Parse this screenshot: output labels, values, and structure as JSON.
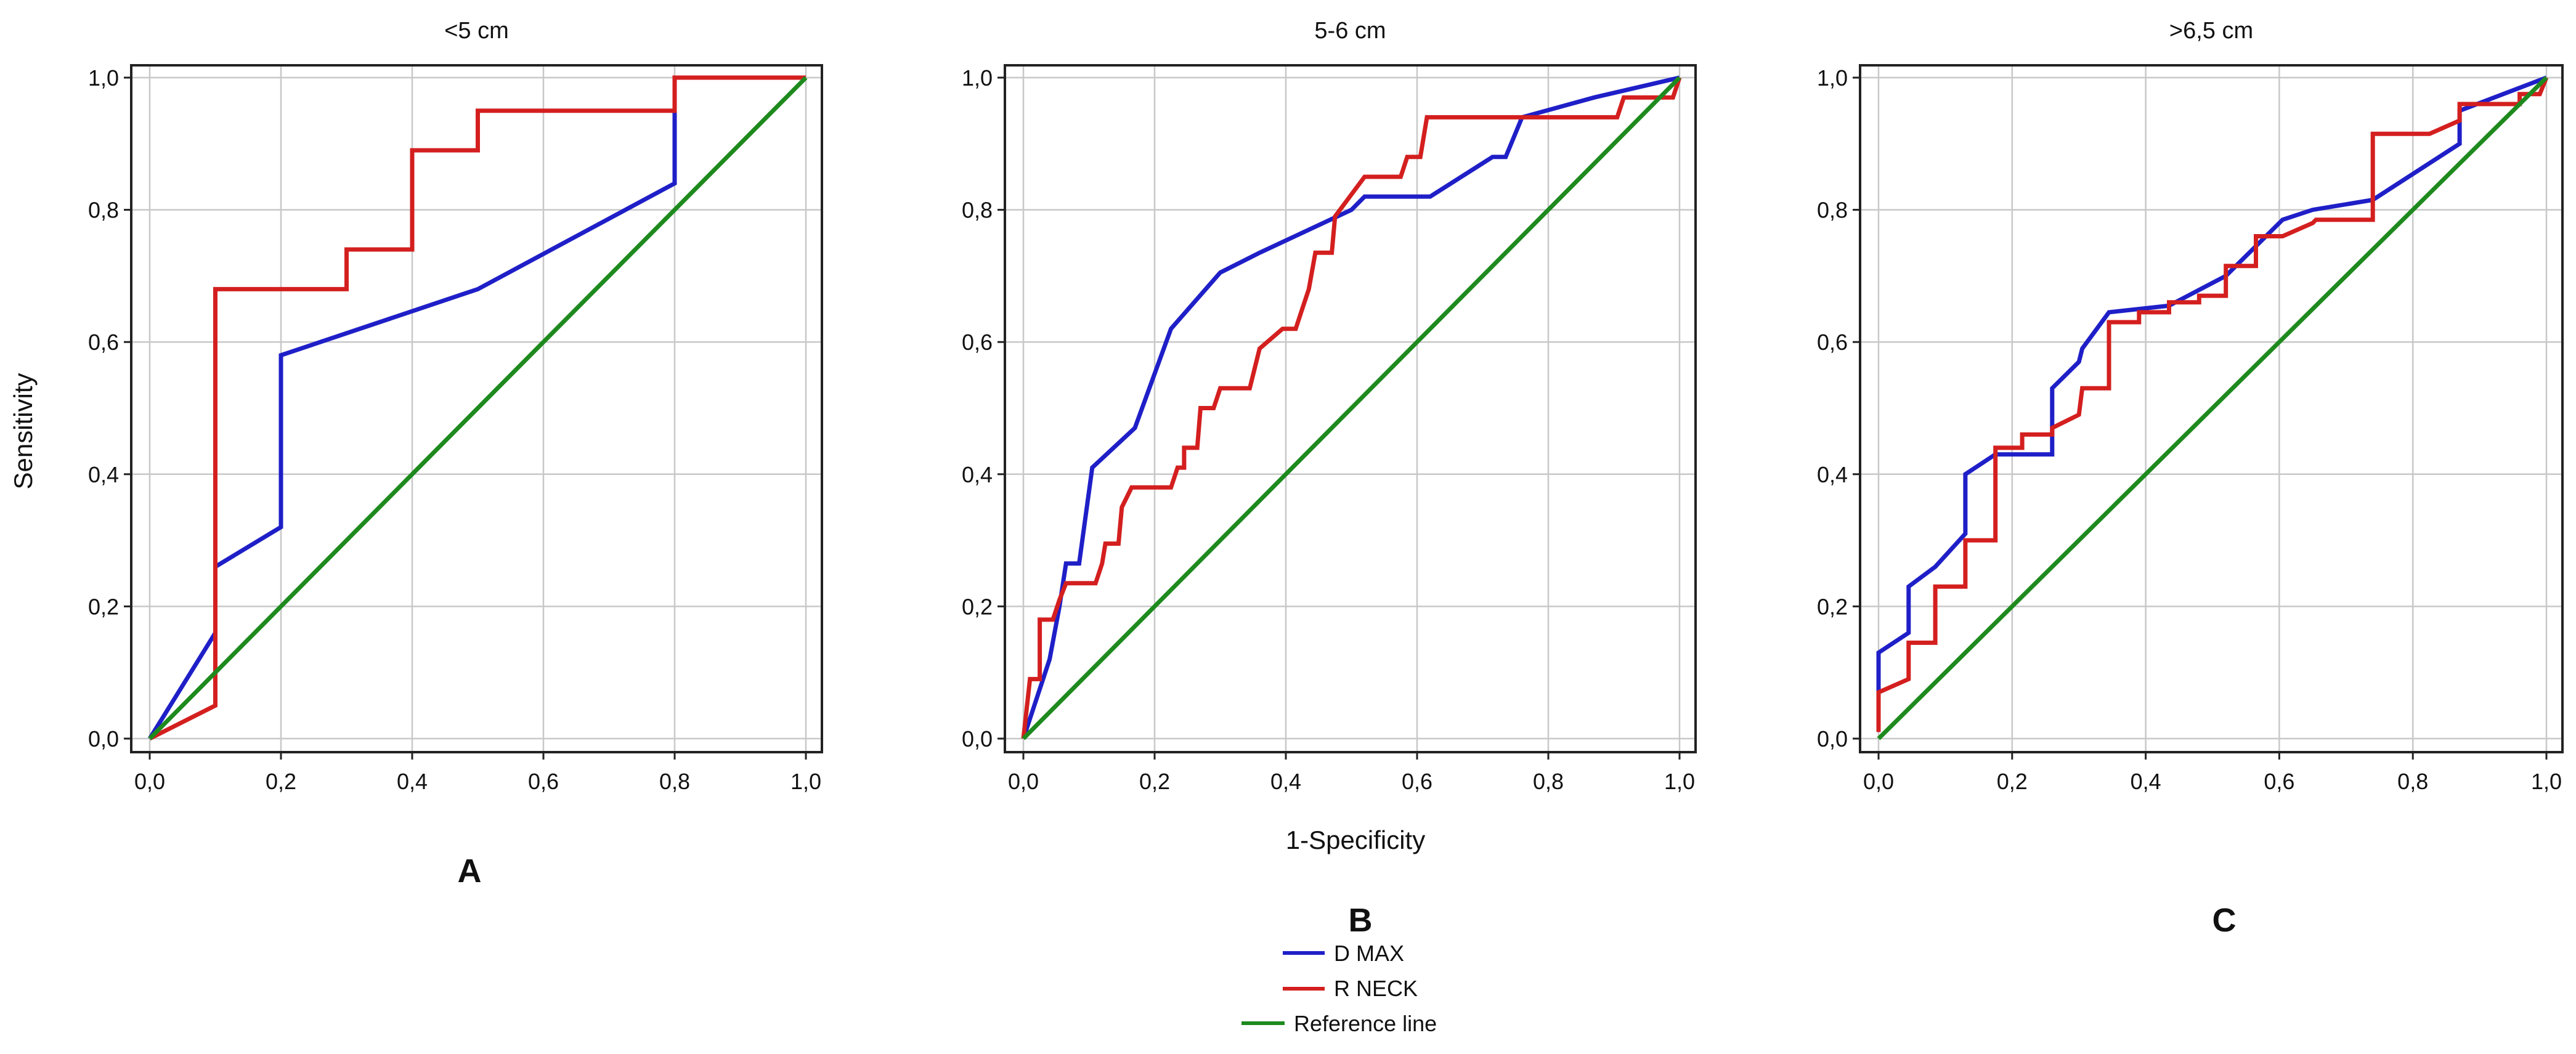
{
  "figure": {
    "shared_xlabel": "1-Specificity",
    "shared_ylabel": "Sensitivity"
  },
  "legend": {
    "items": [
      {
        "label": "D MAX",
        "color": "#1f1fc8"
      },
      {
        "label": "R NECK",
        "color": "#d41f1f"
      },
      {
        "label": "Reference line",
        "color": "#1e8a1e"
      }
    ]
  },
  "chart_data": [
    {
      "type": "line",
      "title": "<5 cm",
      "panel_label": "A",
      "xlabel": "1-Specificity",
      "ylabel": "Sensitivity",
      "xlim": [
        0,
        1
      ],
      "ylim": [
        0,
        1
      ],
      "x_ticks": [
        "0,0",
        "0,2",
        "0,4",
        "0,6",
        "0,8",
        "1,0"
      ],
      "y_ticks": [
        "0,0",
        "0,2",
        "0,4",
        "0,6",
        "0,8",
        "1,0"
      ],
      "grid": true,
      "series": [
        {
          "name": "D MAX",
          "color": "#1f1fc8",
          "points": [
            [
              0,
              0
            ],
            [
              0.1,
              0.16
            ],
            [
              0.1,
              0.26
            ],
            [
              0.2,
              0.32
            ],
            [
              0.2,
              0.58
            ],
            [
              0.5,
              0.68
            ],
            [
              0.8,
              0.84
            ],
            [
              0.8,
              1.0
            ],
            [
              1.0,
              1.0
            ]
          ]
        },
        {
          "name": "R NECK",
          "color": "#d41f1f",
          "points": [
            [
              0,
              0
            ],
            [
              0.1,
              0.05
            ],
            [
              0.1,
              0.68
            ],
            [
              0.3,
              0.68
            ],
            [
              0.3,
              0.74
            ],
            [
              0.4,
              0.74
            ],
            [
              0.4,
              0.89
            ],
            [
              0.5,
              0.89
            ],
            [
              0.5,
              0.95
            ],
            [
              0.8,
              0.95
            ],
            [
              0.8,
              1.0
            ],
            [
              1.0,
              1.0
            ]
          ]
        },
        {
          "name": "Reference line",
          "color": "#1e8a1e",
          "points": [
            [
              0,
              0
            ],
            [
              1,
              1
            ]
          ]
        }
      ]
    },
    {
      "type": "line",
      "title": "5-6 cm",
      "panel_label": "B",
      "xlabel": "1-Specificity",
      "ylabel": "Sensitivity",
      "xlim": [
        0,
        1
      ],
      "ylim": [
        0,
        1
      ],
      "x_ticks": [
        "0,0",
        "0,2",
        "0,4",
        "0,6",
        "0,8",
        "1,0"
      ],
      "y_ticks": [
        "0,0",
        "0,2",
        "0,4",
        "0,6",
        "0,8",
        "1,0"
      ],
      "grid": true,
      "series": [
        {
          "name": "D MAX",
          "color": "#1f1fc8",
          "points": [
            [
              0,
              0
            ],
            [
              0.02,
              0.06
            ],
            [
              0.04,
              0.12
            ],
            [
              0.055,
              0.2
            ],
            [
              0.065,
              0.265
            ],
            [
              0.085,
              0.265
            ],
            [
              0.105,
              0.41
            ],
            [
              0.17,
              0.47
            ],
            [
              0.225,
              0.62
            ],
            [
              0.3,
              0.705
            ],
            [
              0.36,
              0.735
            ],
            [
              0.5,
              0.8
            ],
            [
              0.52,
              0.82
            ],
            [
              0.62,
              0.82
            ],
            [
              0.715,
              0.88
            ],
            [
              0.735,
              0.88
            ],
            [
              0.76,
              0.94
            ],
            [
              0.87,
              0.97
            ],
            [
              1.0,
              1.0
            ]
          ]
        },
        {
          "name": "R NECK",
          "color": "#d41f1f",
          "points": [
            [
              0,
              0
            ],
            [
              0.01,
              0.09
            ],
            [
              0.025,
              0.09
            ],
            [
              0.025,
              0.18
            ],
            [
              0.045,
              0.18
            ],
            [
              0.055,
              0.21
            ],
            [
              0.065,
              0.235
            ],
            [
              0.11,
              0.235
            ],
            [
              0.12,
              0.265
            ],
            [
              0.125,
              0.295
            ],
            [
              0.145,
              0.295
            ],
            [
              0.15,
              0.35
            ],
            [
              0.165,
              0.38
            ],
            [
              0.225,
              0.38
            ],
            [
              0.235,
              0.41
            ],
            [
              0.245,
              0.41
            ],
            [
              0.245,
              0.44
            ],
            [
              0.265,
              0.44
            ],
            [
              0.27,
              0.5
            ],
            [
              0.29,
              0.5
            ],
            [
              0.3,
              0.53
            ],
            [
              0.345,
              0.53
            ],
            [
              0.36,
              0.59
            ],
            [
              0.395,
              0.62
            ],
            [
              0.415,
              0.62
            ],
            [
              0.425,
              0.65
            ],
            [
              0.435,
              0.68
            ],
            [
              0.445,
              0.735
            ],
            [
              0.47,
              0.735
            ],
            [
              0.475,
              0.79
            ],
            [
              0.52,
              0.85
            ],
            [
              0.575,
              0.85
            ],
            [
              0.585,
              0.88
            ],
            [
              0.605,
              0.88
            ],
            [
              0.615,
              0.94
            ],
            [
              0.905,
              0.94
            ],
            [
              0.915,
              0.97
            ],
            [
              0.99,
              0.97
            ],
            [
              1.0,
              1.0
            ]
          ]
        },
        {
          "name": "Reference line",
          "color": "#1e8a1e",
          "points": [
            [
              0,
              0
            ],
            [
              1,
              1
            ]
          ]
        }
      ]
    },
    {
      "type": "line",
      "title": ">6,5 cm",
      "panel_label": "C",
      "xlabel": "1-Specificity",
      "ylabel": "Sensitivity",
      "xlim": [
        0,
        1
      ],
      "ylim": [
        0,
        1
      ],
      "x_ticks": [
        "0,0",
        "0,2",
        "0,4",
        "0,6",
        "0,8",
        "1,0"
      ],
      "y_ticks": [
        "0,0",
        "0,2",
        "0,4",
        "0,6",
        "0,8",
        "1,0"
      ],
      "grid": true,
      "series": [
        {
          "name": "D MAX",
          "color": "#1f1fc8",
          "points": [
            [
              0,
              0.01
            ],
            [
              0,
              0.13
            ],
            [
              0.045,
              0.16
            ],
            [
              0.045,
              0.23
            ],
            [
              0.085,
              0.26
            ],
            [
              0.13,
              0.31
            ],
            [
              0.13,
              0.4
            ],
            [
              0.175,
              0.43
            ],
            [
              0.26,
              0.43
            ],
            [
              0.26,
              0.53
            ],
            [
              0.3,
              0.57
            ],
            [
              0.305,
              0.59
            ],
            [
              0.345,
              0.645
            ],
            [
              0.435,
              0.655
            ],
            [
              0.52,
              0.7
            ],
            [
              0.605,
              0.785
            ],
            [
              0.65,
              0.8
            ],
            [
              0.74,
              0.815
            ],
            [
              0.87,
              0.9
            ],
            [
              0.87,
              0.95
            ],
            [
              1.0,
              1.0
            ]
          ]
        },
        {
          "name": "R NECK",
          "color": "#d41f1f",
          "points": [
            [
              0,
              0.01
            ],
            [
              0,
              0.07
            ],
            [
              0.045,
              0.09
            ],
            [
              0.045,
              0.145
            ],
            [
              0.085,
              0.145
            ],
            [
              0.085,
              0.23
            ],
            [
              0.13,
              0.23
            ],
            [
              0.13,
              0.3
            ],
            [
              0.175,
              0.3
            ],
            [
              0.175,
              0.44
            ],
            [
              0.215,
              0.44
            ],
            [
              0.215,
              0.46
            ],
            [
              0.26,
              0.46
            ],
            [
              0.26,
              0.47
            ],
            [
              0.3,
              0.49
            ],
            [
              0.305,
              0.53
            ],
            [
              0.345,
              0.53
            ],
            [
              0.345,
              0.63
            ],
            [
              0.39,
              0.63
            ],
            [
              0.39,
              0.645
            ],
            [
              0.435,
              0.645
            ],
            [
              0.435,
              0.66
            ],
            [
              0.48,
              0.66
            ],
            [
              0.48,
              0.67
            ],
            [
              0.52,
              0.67
            ],
            [
              0.52,
              0.715
            ],
            [
              0.565,
              0.715
            ],
            [
              0.565,
              0.76
            ],
            [
              0.605,
              0.76
            ],
            [
              0.65,
              0.78
            ],
            [
              0.655,
              0.785
            ],
            [
              0.74,
              0.785
            ],
            [
              0.74,
              0.915
            ],
            [
              0.825,
              0.915
            ],
            [
              0.87,
              0.935
            ],
            [
              0.87,
              0.96
            ],
            [
              0.96,
              0.96
            ],
            [
              0.96,
              0.975
            ],
            [
              0.99,
              0.975
            ],
            [
              1.0,
              1.0
            ]
          ]
        },
        {
          "name": "Reference line",
          "color": "#1e8a1e",
          "points": [
            [
              0,
              0
            ],
            [
              1,
              1
            ]
          ]
        }
      ]
    }
  ]
}
